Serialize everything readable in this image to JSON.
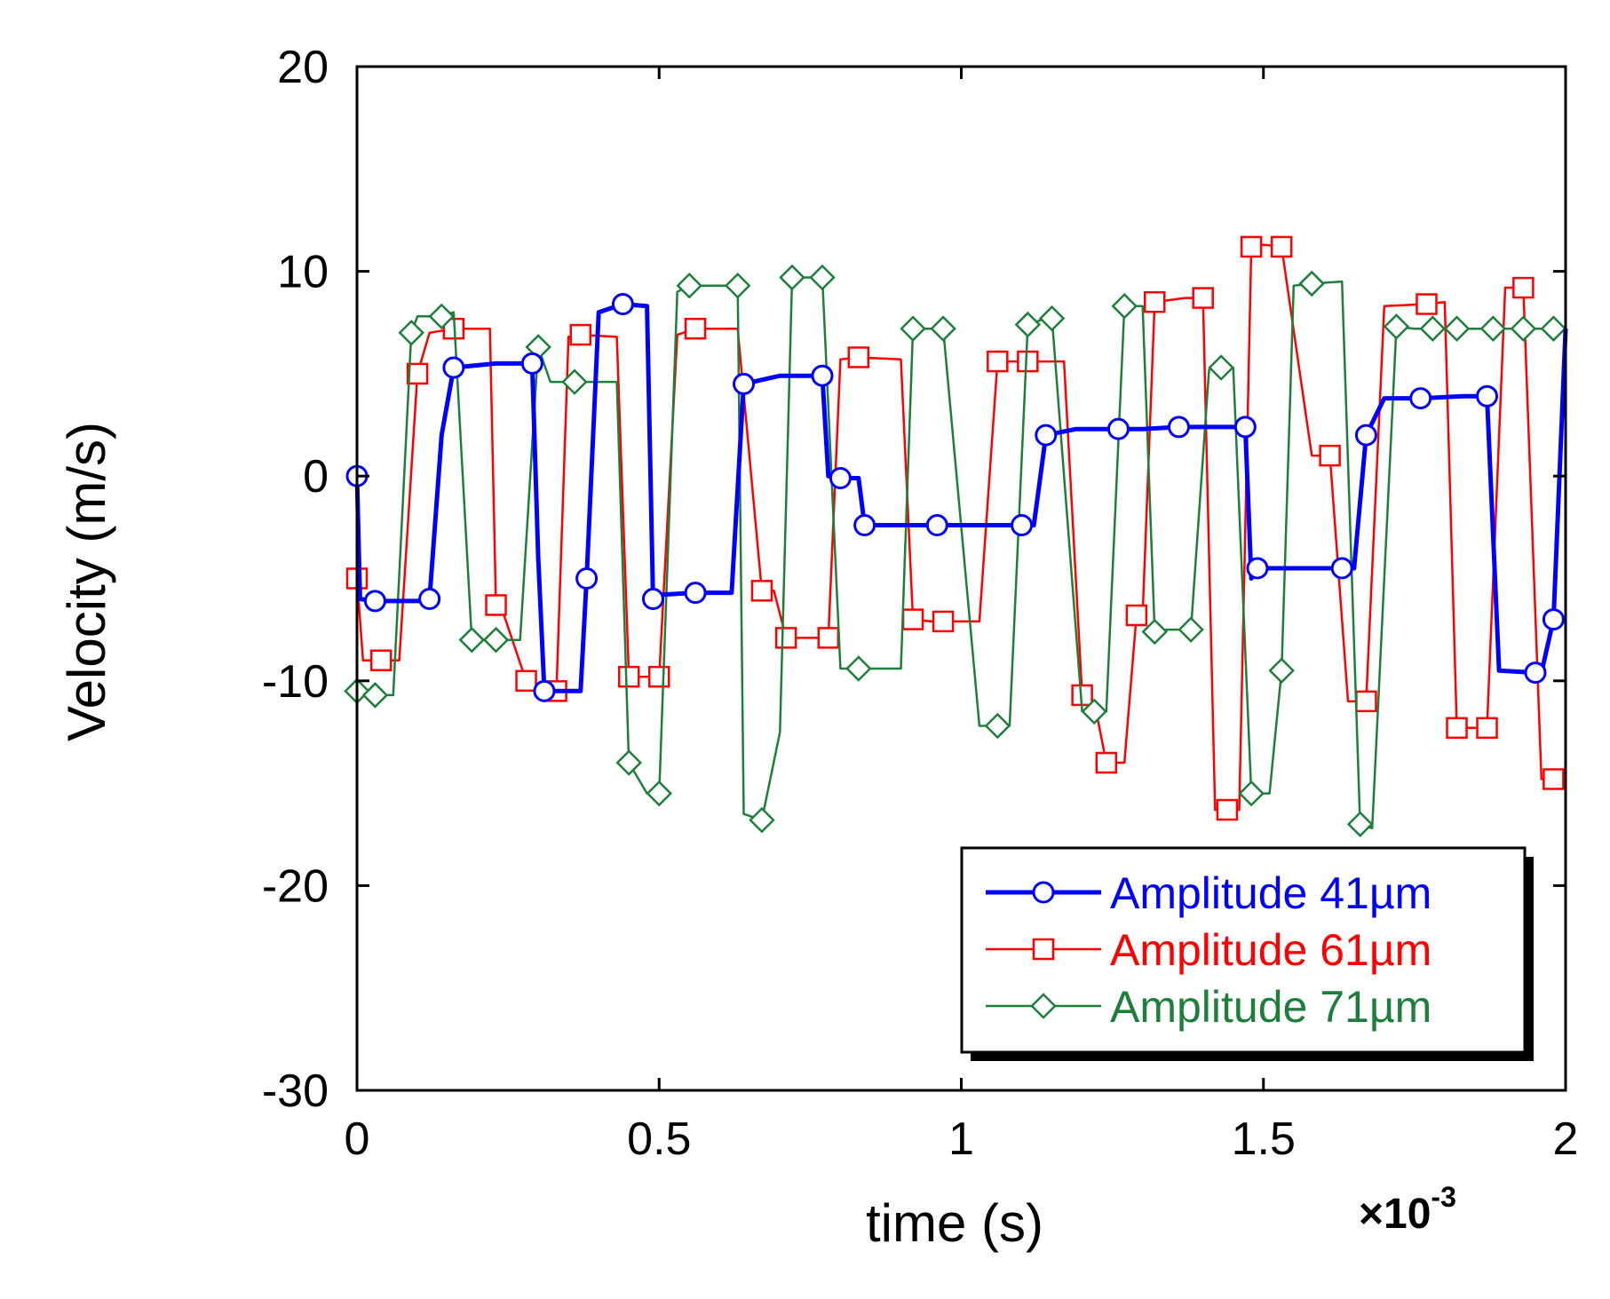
{
  "chart_data": {
    "type": "line",
    "title": "",
    "xlabel": "time (s)",
    "ylabel": "Velocity (m/s)",
    "x_multiplier_label": "×10",
    "x_multiplier_exponent": "-3",
    "xlim": [
      0,
      2
    ],
    "ylim": [
      -30,
      20
    ],
    "xticks": [
      0,
      0.5,
      1,
      1.5,
      2
    ],
    "xtick_labels": [
      "0",
      "0.5",
      "1",
      "1.5",
      "2"
    ],
    "yticks": [
      -30,
      -20,
      -10,
      0,
      10,
      20
    ],
    "ytick_labels": [
      "-30",
      "-20",
      "-10",
      "0",
      "10",
      "20"
    ],
    "grid": false,
    "legend_position": "lower-right",
    "x_units_note": "time axis values in ms (x 10^-3 s)",
    "series": [
      {
        "name": "Amplitude 41µm",
        "color": "#0000ff",
        "marker": "circle",
        "line_weight": "thick",
        "x": [
          0,
          0.005,
          0.03,
          0.1,
          0.12,
          0.14,
          0.16,
          0.23,
          0.29,
          0.3,
          0.31,
          0.37,
          0.38,
          0.4,
          0.44,
          0.48,
          0.49,
          0.5,
          0.56,
          0.62,
          0.64,
          0.7,
          0.77,
          0.78,
          0.8,
          0.83,
          0.84,
          0.9,
          0.96,
          1.03,
          1.1,
          1.12,
          1.14,
          1.19,
          1.26,
          1.3,
          1.36,
          1.43,
          1.47,
          1.48,
          1.49,
          1.56,
          1.63,
          1.65,
          1.67,
          1.7,
          1.76,
          1.83,
          1.87,
          1.89,
          1.95,
          1.96,
          1.98,
          2.0
        ],
        "y": [
          0,
          -6,
          -6.1,
          -6.1,
          -6,
          2,
          5.3,
          5.5,
          5.5,
          -4,
          -10.5,
          -10.5,
          -5,
          8,
          8.4,
          8.3,
          -6,
          -5.8,
          -5.7,
          -5.7,
          4.5,
          4.9,
          4.9,
          0,
          -0.1,
          -0.1,
          -2.4,
          -2.4,
          -2.4,
          -2.4,
          -2.4,
          -2.4,
          2,
          2.3,
          2.3,
          2.3,
          2.4,
          2.4,
          2.4,
          -5,
          -4.5,
          -4.5,
          -4.5,
          -4.5,
          2,
          3.8,
          3.8,
          3.9,
          3.9,
          -9.5,
          -9.6,
          -9.6,
          -7,
          7.2
        ]
      },
      {
        "name": "Amplitude 61µm",
        "color": "#ff0000",
        "marker": "square",
        "line_weight": "thin",
        "x": [
          0,
          0.01,
          0.04,
          0.07,
          0.1,
          0.12,
          0.16,
          0.22,
          0.23,
          0.24,
          0.28,
          0.31,
          0.33,
          0.35,
          0.37,
          0.43,
          0.45,
          0.47,
          0.5,
          0.53,
          0.56,
          0.63,
          0.67,
          0.69,
          0.71,
          0.75,
          0.78,
          0.8,
          0.83,
          0.9,
          0.92,
          0.95,
          0.97,
          1.03,
          1.06,
          1.08,
          1.11,
          1.17,
          1.2,
          1.22,
          1.24,
          1.27,
          1.29,
          1.3,
          1.32,
          1.37,
          1.4,
          1.42,
          1.44,
          1.46,
          1.48,
          1.5,
          1.53,
          1.58,
          1.61,
          1.64,
          1.67,
          1.7,
          1.77,
          1.8,
          1.82,
          1.84,
          1.87,
          1.9,
          1.93,
          1.96,
          1.98,
          2.0
        ],
        "y": [
          -5,
          -9,
          -9,
          -9,
          5,
          7,
          7.2,
          7.2,
          -6.3,
          -6.5,
          -10,
          -10.5,
          -10.5,
          6.8,
          6.9,
          6.8,
          -9.8,
          -9.8,
          -9.8,
          6.9,
          7.2,
          7.2,
          -5.6,
          -5.6,
          -7.9,
          -7.9,
          -7.9,
          5.7,
          5.8,
          5.7,
          -7,
          -7.1,
          -7.1,
          -7.1,
          5.6,
          5.6,
          5.6,
          5.6,
          -10.7,
          -11,
          -14,
          -14,
          -6.8,
          -6.8,
          8.5,
          8.7,
          8.7,
          -16.3,
          -16.3,
          -16.3,
          11.2,
          11.3,
          11.2,
          1,
          1,
          -11,
          -11,
          8.3,
          8.4,
          8.5,
          -12.3,
          -12.3,
          -12.3,
          9.2,
          9.2,
          -14.8,
          -14.8,
          -15
        ]
      },
      {
        "name": "Amplitude 71µm",
        "color": "#1e7f3a",
        "marker": "diamond",
        "line_weight": "thin",
        "x": [
          0,
          0.01,
          0.03,
          0.06,
          0.09,
          0.1,
          0.14,
          0.16,
          0.19,
          0.2,
          0.23,
          0.27,
          0.3,
          0.32,
          0.36,
          0.43,
          0.45,
          0.48,
          0.5,
          0.53,
          0.55,
          0.58,
          0.63,
          0.64,
          0.67,
          0.7,
          0.72,
          0.75,
          0.77,
          0.8,
          0.83,
          0.9,
          0.92,
          0.95,
          0.97,
          1.03,
          1.06,
          1.08,
          1.11,
          1.14,
          1.15,
          1.2,
          1.22,
          1.24,
          1.27,
          1.3,
          1.32,
          1.34,
          1.38,
          1.41,
          1.43,
          1.45,
          1.48,
          1.51,
          1.53,
          1.55,
          1.58,
          1.63,
          1.66,
          1.68,
          1.72,
          1.75,
          1.78,
          1.8,
          1.82,
          1.86,
          1.88,
          1.9,
          1.93,
          1.96,
          1.98,
          2.0
        ],
        "y": [
          -10.5,
          -10.5,
          -10.7,
          -10.7,
          7,
          7.8,
          7.8,
          8,
          -8,
          -8,
          -8,
          -8,
          6.3,
          4.6,
          4.6,
          4.6,
          -14,
          -15.5,
          -15.5,
          9,
          9.3,
          9.3,
          9.3,
          -16.5,
          -16.8,
          -12.5,
          9.7,
          9.7,
          9.7,
          -9.4,
          -9.4,
          -9.4,
          7.2,
          7.2,
          7.2,
          -12.2,
          -12.2,
          -12.2,
          7.4,
          7.7,
          7.7,
          -11.5,
          -11.5,
          -11.5,
          8.3,
          8.3,
          -7.6,
          -7.5,
          -7.5,
          5.2,
          5.3,
          5.3,
          -15.5,
          -15.5,
          -9.5,
          9.3,
          9.4,
          9.5,
          -17,
          -17.2,
          7.3,
          7.2,
          7.2,
          7.2,
          7.2,
          7.2,
          7.2,
          7.2,
          7.2,
          7.2,
          7.2,
          7.2
        ]
      }
    ]
  }
}
